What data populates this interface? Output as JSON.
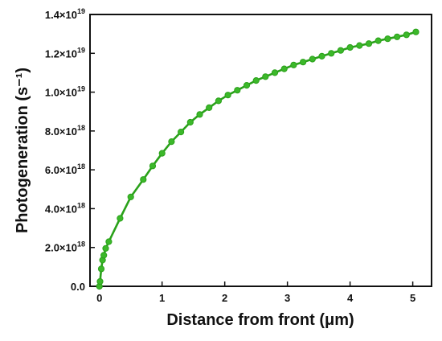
{
  "chart_data": {
    "type": "line",
    "title": "",
    "xlabel": "Distance from front (μm)",
    "ylabel": "Photogeneration (s⁻¹)",
    "xlim": [
      -0.15,
      5.3
    ],
    "ylim": [
      0,
      1.4e+19
    ],
    "grid": false,
    "legend": "none",
    "line_color": "#2aa11a",
    "marker_color": "#3cb82a",
    "x_ticks": [
      {
        "value": 0,
        "label": "0"
      },
      {
        "value": 1,
        "label": "1"
      },
      {
        "value": 2,
        "label": "2"
      },
      {
        "value": 3,
        "label": "3"
      },
      {
        "value": 4,
        "label": "4"
      },
      {
        "value": 5,
        "label": "5"
      }
    ],
    "y_ticks": [
      {
        "value": 0,
        "label": "0.0"
      },
      {
        "value": 2e+18,
        "label": "2.0×10",
        "exp": "18"
      },
      {
        "value": 4e+18,
        "label": "4.0×10",
        "exp": "18"
      },
      {
        "value": 6e+18,
        "label": "6.0×10",
        "exp": "18"
      },
      {
        "value": 8e+18,
        "label": "8.0×10",
        "exp": "18"
      },
      {
        "value": 1e+19,
        "label": "1.0×10",
        "exp": "19"
      },
      {
        "value": 1.2e+19,
        "label": "1.2×10",
        "exp": "19"
      },
      {
        "value": 1.4e+19,
        "label": "1.4×10",
        "exp": "19"
      }
    ],
    "series": [
      {
        "x": [
          0.0,
          0.01,
          0.03,
          0.05,
          0.07,
          0.1,
          0.15,
          0.33,
          0.5,
          0.7,
          0.85,
          1.0,
          1.15,
          1.3,
          1.45,
          1.6,
          1.75,
          1.9,
          2.05,
          2.2,
          2.35,
          2.5,
          2.65,
          2.8,
          2.95,
          3.1,
          3.25,
          3.4,
          3.55,
          3.7,
          3.85,
          4.0,
          4.15,
          4.3,
          4.45,
          4.6,
          4.75,
          4.9,
          5.05
        ],
        "y": [
          0,
          2.5e+17,
          9e+17,
          1.35e+18,
          1.6e+18,
          1.95e+18,
          2.3e+18,
          3.5e+18,
          4.6e+18,
          5.5e+18,
          6.2e+18,
          6.85e+18,
          7.45e+18,
          7.95e+18,
          8.45e+18,
          8.85e+18,
          9.2e+18,
          9.55e+18,
          9.85e+18,
          1.01e+19,
          1.035e+19,
          1.06e+19,
          1.08e+19,
          1.1e+19,
          1.12e+19,
          1.14e+19,
          1.155e+19,
          1.17e+19,
          1.185e+19,
          1.2e+19,
          1.215e+19,
          1.23e+19,
          1.24e+19,
          1.25e+19,
          1.265e+19,
          1.275e+19,
          1.285e+19,
          1.295e+19,
          1.31e+19
        ]
      }
    ]
  }
}
